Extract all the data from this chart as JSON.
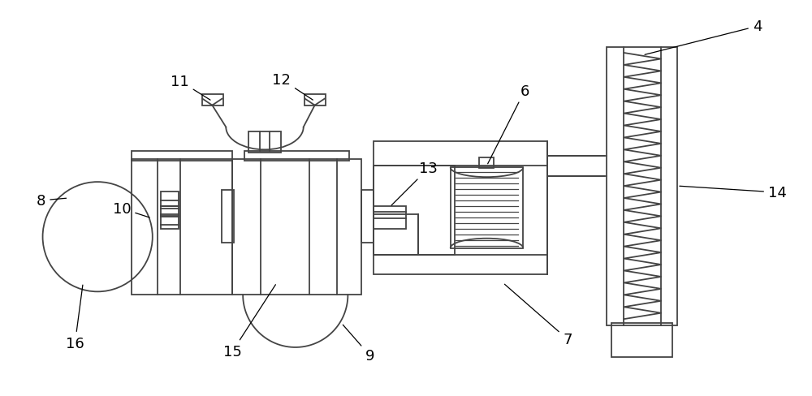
{
  "bg_color": "#ffffff",
  "line_color": "#444444",
  "line_width": 1.3,
  "fig_width": 10.0,
  "fig_height": 4.89,
  "label_fontsize": 13
}
